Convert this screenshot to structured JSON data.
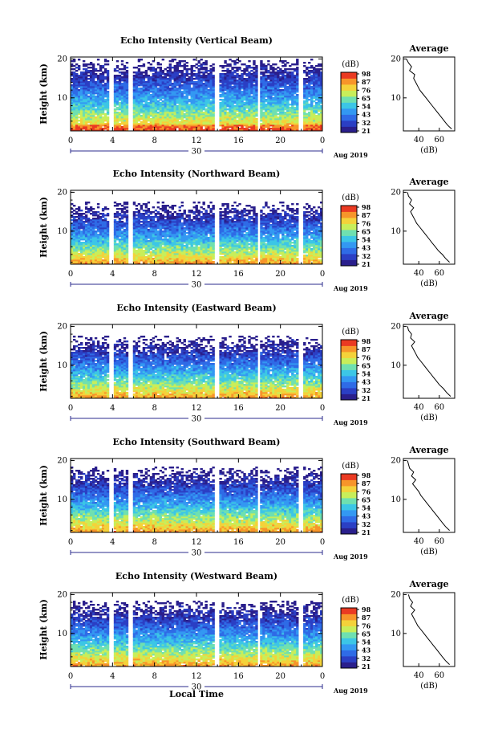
{
  "figure": {
    "xlabel": "Local Time",
    "colorbar_unit": "(dB)",
    "colorbar_ticks": [
      "98",
      "87",
      "76",
      "65",
      "54",
      "43",
      "32",
      "21"
    ],
    "colormap": [
      "#2a1f8c",
      "#2b3fc4",
      "#2f6be6",
      "#3398f2",
      "#3cc6e6",
      "#6fe0b0",
      "#c8ee5a",
      "#f4d23a",
      "#f7952a",
      "#ea3a22"
    ],
    "date_label": "Aug 2019",
    "date_day": "30",
    "x_ticks": [
      "0",
      "4",
      "8",
      "12",
      "16",
      "20",
      "0"
    ],
    "y_ticks": [
      "20",
      "10"
    ],
    "ylabel": "Height (km)",
    "profile_title": "Average",
    "profile_xlabel": "(dB)"
  },
  "chart_data": [
    {
      "type": "heatmap",
      "title": "Echo Intensity (Vertical Beam)",
      "xlabel": "",
      "ylabel": "Height (km)",
      "xlim": [
        0,
        24
      ],
      "ylim": [
        1.5,
        20.5
      ],
      "color_range": [
        21,
        98
      ],
      "data_gaps_hours": [
        [
          3.7,
          4.2
        ],
        [
          5.6,
          6.0
        ],
        [
          13.8,
          14.2
        ],
        [
          17.8,
          18.1
        ],
        [
          21.8,
          22.2
        ]
      ],
      "data_top_km": 20.2,
      "profile": {
        "title": "Average",
        "xlabel": "(dB)",
        "x_ticks": [
          "40",
          "60"
        ],
        "xlim": [
          25,
          75
        ],
        "height_km": [
          2,
          3,
          4,
          5,
          6,
          7,
          8,
          9,
          10,
          11,
          12,
          13,
          14,
          15,
          16,
          17,
          18,
          19,
          20
        ],
        "mean_db": [
          72,
          68,
          65,
          62,
          59,
          56,
          53,
          50,
          47,
          44,
          41,
          39,
          37,
          35,
          36,
          31,
          33,
          30,
          28
        ]
      }
    },
    {
      "type": "heatmap",
      "title": "Echo Intensity (Northward Beam)",
      "xlabel": "",
      "ylabel": "Height (km)",
      "xlim": [
        0,
        24
      ],
      "ylim": [
        1.5,
        20.5
      ],
      "color_range": [
        21,
        98
      ],
      "data_gaps_hours": [
        [
          3.7,
          4.2
        ],
        [
          5.6,
          6.0
        ],
        [
          13.8,
          14.2
        ],
        [
          17.8,
          18.1
        ],
        [
          21.8,
          22.2
        ]
      ],
      "data_top_km": 17.5,
      "profile": {
        "title": "Average",
        "xlabel": "(dB)",
        "x_ticks": [
          "40",
          "60"
        ],
        "xlim": [
          25,
          75
        ],
        "height_km": [
          2,
          3,
          4,
          5,
          6,
          7,
          8,
          9,
          10,
          11,
          12,
          13,
          14,
          15,
          16,
          17,
          18,
          19,
          20
        ],
        "mean_db": [
          70,
          66,
          63,
          59,
          56,
          53,
          50,
          47,
          44,
          41,
          38,
          36,
          34,
          32,
          35,
          31,
          33,
          30,
          29
        ]
      }
    },
    {
      "type": "heatmap",
      "title": "Echo Intensity (Eastward Beam)",
      "xlabel": "",
      "ylabel": "Height (km)",
      "xlim": [
        0,
        24
      ],
      "ylim": [
        1.5,
        20.5
      ],
      "color_range": [
        21,
        98
      ],
      "data_gaps_hours": [
        [
          3.7,
          4.2
        ],
        [
          5.6,
          6.0
        ],
        [
          13.8,
          14.2
        ],
        [
          17.8,
          18.1
        ],
        [
          21.8,
          22.2
        ]
      ],
      "data_top_km": 17.5,
      "profile": {
        "title": "Average",
        "xlabel": "(dB)",
        "x_ticks": [
          "40",
          "60"
        ],
        "xlim": [
          25,
          75
        ],
        "height_km": [
          2,
          3,
          4,
          5,
          6,
          7,
          8,
          9,
          10,
          11,
          12,
          13,
          14,
          15,
          16,
          17,
          18,
          19,
          20
        ],
        "mean_db": [
          71,
          67,
          64,
          60,
          57,
          54,
          51,
          48,
          45,
          42,
          39,
          37,
          35,
          33,
          36,
          32,
          33,
          30,
          29
        ]
      }
    },
    {
      "type": "heatmap",
      "title": "Echo Intensity (Southward Beam)",
      "xlabel": "",
      "ylabel": "Height (km)",
      "xlim": [
        0,
        24
      ],
      "ylim": [
        1.5,
        20.5
      ],
      "color_range": [
        21,
        98
      ],
      "data_gaps_hours": [
        [
          3.7,
          4.2
        ],
        [
          5.6,
          6.0
        ],
        [
          13.8,
          14.2
        ],
        [
          17.8,
          18.1
        ],
        [
          21.8,
          22.2
        ]
      ],
      "data_top_km": 18.3,
      "profile": {
        "title": "Average",
        "xlabel": "(dB)",
        "x_ticks": [
          "40",
          "60"
        ],
        "xlim": [
          25,
          75
        ],
        "height_km": [
          2,
          3,
          4,
          5,
          6,
          7,
          8,
          9,
          10,
          11,
          12,
          13,
          14,
          15,
          16,
          17,
          18,
          19,
          20
        ],
        "mean_db": [
          70,
          66,
          63,
          60,
          57,
          54,
          51,
          48,
          45,
          42,
          40,
          37,
          34,
          37,
          33,
          35,
          31,
          30,
          29
        ]
      }
    },
    {
      "type": "heatmap",
      "title": "Echo Intensity (Westward Beam)",
      "xlabel": "Local Time",
      "ylabel": "Height (km)",
      "xlim": [
        0,
        24
      ],
      "ylim": [
        1.5,
        20.5
      ],
      "color_range": [
        21,
        98
      ],
      "data_gaps_hours": [
        [
          3.7,
          4.2
        ],
        [
          5.6,
          6.0
        ],
        [
          13.8,
          14.2
        ],
        [
          17.8,
          18.1
        ],
        [
          21.8,
          22.2
        ]
      ],
      "data_top_km": 18.5,
      "profile": {
        "title": "Average",
        "xlabel": "(dB)",
        "x_ticks": [
          "40",
          "60"
        ],
        "xlim": [
          25,
          75
        ],
        "height_km": [
          2,
          3,
          4,
          5,
          6,
          7,
          8,
          9,
          10,
          11,
          12,
          13,
          14,
          15,
          16,
          17,
          18,
          19,
          20
        ],
        "mean_db": [
          70,
          66,
          63,
          60,
          57,
          54,
          51,
          48,
          45,
          42,
          39,
          37,
          35,
          33,
          36,
          32,
          34,
          31,
          30
        ]
      }
    }
  ]
}
